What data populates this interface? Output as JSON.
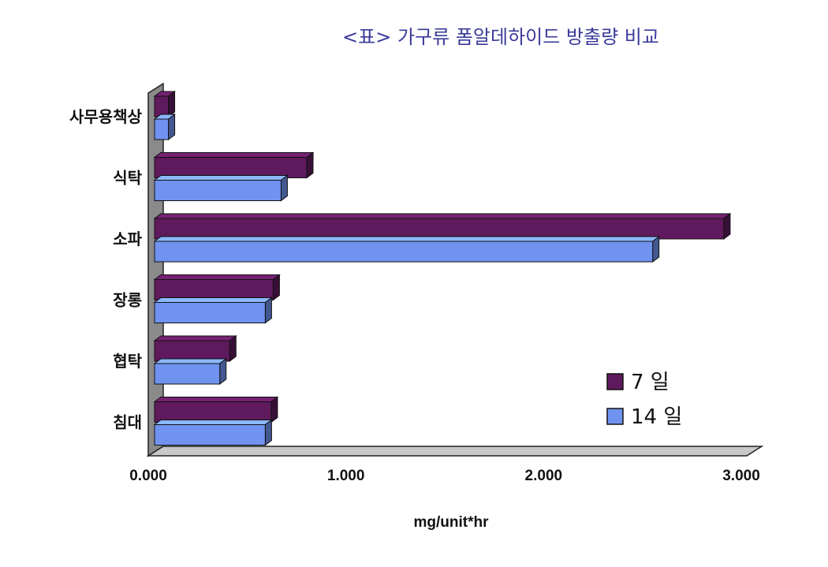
{
  "chart_data": {
    "type": "bar",
    "orientation": "horizontal",
    "title": "<표> 가구류 폼알데하이드 방출량 비교",
    "xlabel": "mg/unit*hr",
    "ylabel": "",
    "categories": [
      "사무용책상",
      "식탁",
      "소파",
      "장롱",
      "협탁",
      "침대"
    ],
    "series": [
      {
        "name": "7 일",
        "values": [
          0.07,
          0.77,
          2.88,
          0.6,
          0.38,
          0.59
        ],
        "color": "#5e1a5c"
      },
      {
        "name": "14 일",
        "values": [
          0.07,
          0.64,
          2.52,
          0.56,
          0.33,
          0.56
        ],
        "color": "#6f93ef"
      }
    ],
    "xlim": [
      0,
      3
    ],
    "xticks": [
      "0.000",
      "1.000",
      "2.000",
      "3.000"
    ],
    "legend_position": "bottom-right",
    "grid": false
  }
}
